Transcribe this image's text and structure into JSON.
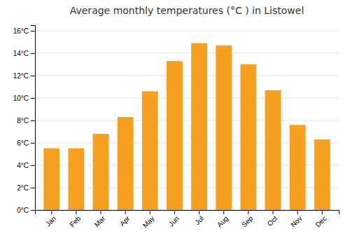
{
  "chart_data": {
    "type": "bar",
    "title": "Average monthly temperatures (°C ) in Listowel",
    "categories": [
      "Jan",
      "Feb",
      "Mar",
      "Apr",
      "May",
      "Jun",
      "Jul",
      "Aug",
      "Sep",
      "Oct",
      "Nov",
      "Dec"
    ],
    "values": [
      5.5,
      5.5,
      6.8,
      8.3,
      10.6,
      13.3,
      14.9,
      14.7,
      13.0,
      10.7,
      7.6,
      6.3
    ],
    "color": "#F5A020",
    "ylim": [
      0,
      16.5
    ],
    "yticks": [
      {
        "value": 0,
        "label": "0°C"
      },
      {
        "value": 2,
        "label": "2°C"
      },
      {
        "value": 4,
        "label": "4°C"
      },
      {
        "value": 6,
        "label": "6°C"
      },
      {
        "value": 8,
        "label": "8°C"
      },
      {
        "value": 10,
        "label": "10°C"
      },
      {
        "value": 12,
        "label": "12°C"
      },
      {
        "value": 14,
        "label": "14°C"
      },
      {
        "value": 16,
        "label": "16°C"
      }
    ],
    "grid": true
  }
}
